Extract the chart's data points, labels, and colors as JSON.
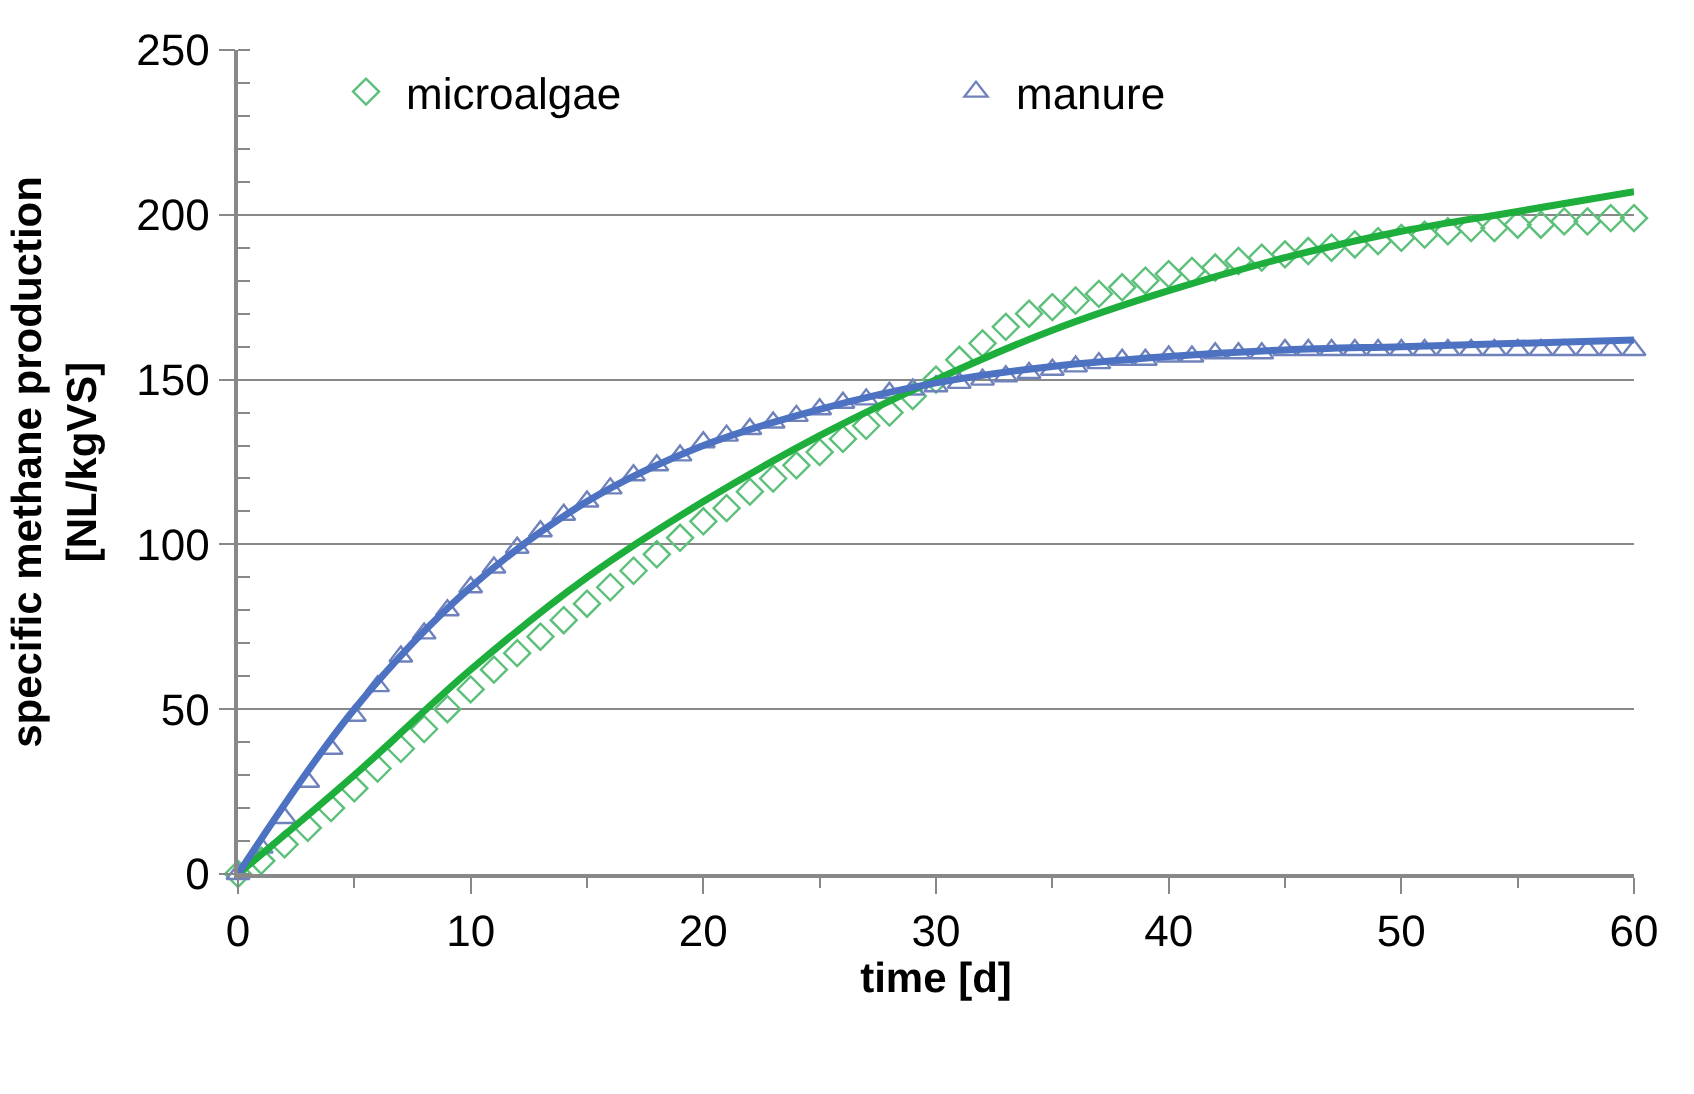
{
  "chart_data": {
    "type": "scatter",
    "xlabel": "time [d]",
    "ylabel": "specific methane production\n[NL/kgVS]",
    "xlim": [
      0,
      60
    ],
    "xticks": [
      0,
      10,
      20,
      30,
      40,
      50,
      60
    ],
    "ylim": [
      0,
      250
    ],
    "yticks": [
      0,
      50,
      100,
      150,
      200,
      250
    ],
    "grid": "y",
    "legend": "top",
    "line_style": "solid",
    "series": [
      {
        "name": "microalgae",
        "marker": "diamond",
        "color": "#5cc07a",
        "x": [
          0,
          1,
          2,
          3,
          4,
          5,
          6,
          7,
          8,
          9,
          10,
          11,
          12,
          13,
          14,
          15,
          16,
          17,
          18,
          19,
          20,
          21,
          22,
          23,
          24,
          25,
          26,
          27,
          28,
          29,
          30,
          31,
          32,
          33,
          34,
          35,
          36,
          37,
          38,
          39,
          40,
          41,
          42,
          43,
          44,
          45,
          46,
          47,
          48,
          49,
          50,
          51,
          52,
          53,
          54,
          55,
          56,
          57,
          58,
          59,
          60
        ],
        "values": [
          0,
          4,
          9,
          14,
          20,
          26,
          32,
          38,
          44,
          50,
          56,
          62,
          67,
          72,
          77,
          82,
          87,
          92,
          97,
          102,
          107,
          111,
          116,
          120,
          124,
          128,
          132,
          136,
          140,
          145,
          150,
          156,
          161,
          166,
          170,
          172,
          174,
          176,
          178,
          180,
          182,
          183,
          184,
          186,
          187,
          188,
          189,
          190,
          191,
          192,
          193,
          194,
          195,
          196,
          196,
          197,
          197,
          198,
          198,
          199,
          199
        ]
      },
      {
        "name": "manure",
        "marker": "triangle",
        "color": "#7082bb",
        "x": [
          0,
          1,
          2,
          3,
          4,
          5,
          6,
          7,
          8,
          9,
          10,
          11,
          12,
          13,
          14,
          15,
          16,
          17,
          18,
          19,
          20,
          21,
          22,
          23,
          24,
          25,
          26,
          27,
          28,
          29,
          30,
          31,
          32,
          33,
          34,
          35,
          36,
          37,
          38,
          39,
          40,
          41,
          42,
          43,
          44,
          45,
          46,
          47,
          48,
          49,
          50,
          51,
          52,
          53,
          54,
          55,
          56,
          57,
          58,
          59,
          60
        ],
        "values": [
          0,
          8,
          17,
          28,
          38,
          48,
          57,
          66,
          73,
          80,
          87,
          93,
          99,
          104,
          109,
          113,
          117,
          121,
          124,
          127,
          131,
          133,
          135,
          137,
          139,
          141,
          143,
          144,
          146,
          147,
          148,
          149,
          150,
          151,
          152,
          153,
          154,
          155,
          156,
          156,
          157,
          157,
          158,
          158,
          158,
          159,
          159,
          159,
          159,
          159,
          159,
          159,
          159,
          159,
          159,
          159,
          159,
          159,
          159,
          159,
          159
        ]
      },
      {
        "type": "line",
        "color": "#1eae3c",
        "x": [
          0,
          5,
          10,
          15,
          20,
          25,
          30,
          35,
          40,
          45,
          50,
          55,
          60
        ],
        "values": [
          0,
          30,
          62,
          90,
          113,
          133,
          150,
          165,
          177,
          187,
          195,
          201,
          207
        ]
      },
      {
        "type": "line",
        "color": "#4d72c2",
        "x": [
          0,
          5,
          10,
          15,
          20,
          25,
          30,
          35,
          40,
          45,
          50,
          55,
          60
        ],
        "values": [
          0,
          50,
          87,
          113,
          130,
          141,
          149,
          154,
          157,
          159,
          160,
          161,
          162
        ]
      }
    ]
  }
}
